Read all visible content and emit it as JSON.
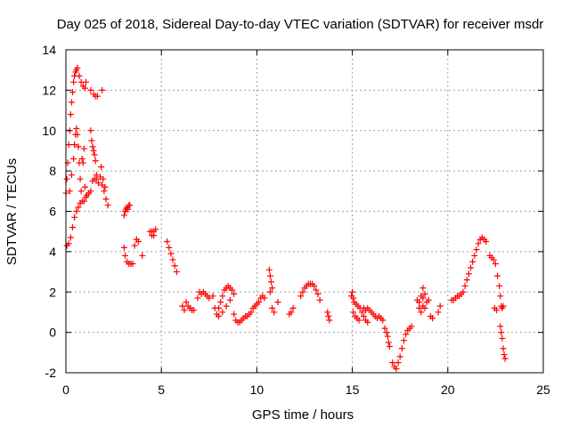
{
  "chart_data": {
    "type": "scatter",
    "title": "Day 025 of 2018, Sidereal Day-to-day VTEC variation (SDTVAR) for receiver msdr",
    "xlabel": "GPS time / hours",
    "ylabel": "SDTVAR / TECUs",
    "xlim": [
      0,
      25
    ],
    "ylim": [
      -2,
      14
    ],
    "xticks": [
      0,
      5,
      10,
      15,
      20,
      25
    ],
    "yticks": [
      -2,
      0,
      2,
      4,
      6,
      8,
      10,
      12,
      14
    ],
    "grid": true,
    "marker": "+",
    "color": "#ff0000",
    "series": [
      {
        "name": "SDTVAR",
        "points": [
          [
            0.0,
            6.9
          ],
          [
            0.05,
            7.6
          ],
          [
            0.1,
            8.4
          ],
          [
            0.15,
            9.3
          ],
          [
            0.2,
            10.0
          ],
          [
            0.25,
            10.8
          ],
          [
            0.3,
            11.4
          ],
          [
            0.35,
            11.9
          ],
          [
            0.4,
            12.4
          ],
          [
            0.45,
            12.7
          ],
          [
            0.5,
            12.9
          ],
          [
            0.55,
            13.0
          ],
          [
            0.6,
            13.1
          ],
          [
            0.05,
            4.3
          ],
          [
            0.15,
            4.4
          ],
          [
            0.25,
            4.7
          ],
          [
            0.35,
            5.2
          ],
          [
            0.45,
            5.7
          ],
          [
            0.55,
            6.0
          ],
          [
            0.65,
            6.2
          ],
          [
            0.75,
            6.4
          ],
          [
            0.85,
            6.5
          ],
          [
            0.95,
            6.5
          ],
          [
            1.05,
            6.7
          ],
          [
            0.2,
            7.0
          ],
          [
            0.3,
            7.8
          ],
          [
            0.4,
            8.6
          ],
          [
            0.45,
            9.3
          ],
          [
            0.5,
            9.8
          ],
          [
            0.55,
            10.1
          ],
          [
            0.6,
            9.8
          ],
          [
            0.65,
            9.2
          ],
          [
            0.7,
            8.4
          ],
          [
            0.75,
            7.6
          ],
          [
            0.8,
            7.0
          ],
          [
            0.7,
            12.7
          ],
          [
            0.8,
            12.4
          ],
          [
            0.9,
            12.2
          ],
          [
            1.0,
            12.1
          ],
          [
            1.05,
            12.4
          ],
          [
            1.3,
            12.0
          ],
          [
            1.45,
            11.8
          ],
          [
            1.55,
            11.7
          ],
          [
            1.65,
            11.7
          ],
          [
            1.9,
            12.0
          ],
          [
            0.85,
            8.6
          ],
          [
            0.9,
            8.4
          ],
          [
            0.95,
            9.1
          ],
          [
            1.0,
            7.2
          ],
          [
            1.1,
            6.8
          ],
          [
            1.2,
            6.9
          ],
          [
            1.3,
            7.0
          ],
          [
            1.4,
            7.5
          ],
          [
            1.5,
            7.6
          ],
          [
            1.6,
            7.6
          ],
          [
            1.7,
            7.4
          ],
          [
            1.8,
            7.7
          ],
          [
            1.9,
            7.3
          ],
          [
            2.0,
            7.0
          ],
          [
            2.1,
            6.6
          ],
          [
            2.2,
            6.3
          ],
          [
            1.3,
            10.0
          ],
          [
            1.35,
            9.5
          ],
          [
            1.4,
            9.2
          ],
          [
            1.45,
            9.0
          ],
          [
            1.5,
            8.8
          ],
          [
            1.55,
            8.5
          ],
          [
            1.6,
            7.8
          ],
          [
            1.85,
            8.2
          ],
          [
            1.95,
            7.6
          ],
          [
            2.05,
            7.2
          ],
          [
            3.05,
            5.8
          ],
          [
            3.1,
            6.0
          ],
          [
            3.15,
            6.1
          ],
          [
            3.2,
            6.2
          ],
          [
            3.25,
            6.1
          ],
          [
            3.3,
            6.3
          ],
          [
            3.35,
            6.3
          ],
          [
            3.05,
            4.2
          ],
          [
            3.1,
            3.8
          ],
          [
            3.2,
            3.5
          ],
          [
            3.3,
            3.4
          ],
          [
            3.4,
            3.4
          ],
          [
            3.5,
            3.4
          ],
          [
            3.6,
            4.3
          ],
          [
            3.7,
            4.6
          ],
          [
            3.8,
            4.5
          ],
          [
            4.0,
            3.8
          ],
          [
            4.4,
            5.0
          ],
          [
            4.5,
            5.0
          ],
          [
            4.6,
            5.0
          ],
          [
            4.7,
            5.1
          ],
          [
            4.5,
            4.8
          ],
          [
            4.6,
            4.8
          ],
          [
            5.3,
            4.5
          ],
          [
            5.4,
            4.2
          ],
          [
            5.5,
            3.9
          ],
          [
            5.6,
            3.6
          ],
          [
            5.7,
            3.3
          ],
          [
            5.8,
            3.0
          ],
          [
            6.1,
            1.3
          ],
          [
            6.2,
            1.1
          ],
          [
            6.3,
            1.5
          ],
          [
            6.4,
            1.3
          ],
          [
            6.5,
            1.2
          ],
          [
            6.6,
            1.1
          ],
          [
            6.7,
            1.1
          ],
          [
            6.9,
            1.7
          ],
          [
            7.0,
            2.0
          ],
          [
            7.1,
            1.9
          ],
          [
            7.2,
            2.0
          ],
          [
            7.3,
            1.9
          ],
          [
            7.4,
            1.8
          ],
          [
            7.5,
            1.7
          ],
          [
            7.7,
            1.8
          ],
          [
            7.8,
            1.2
          ],
          [
            7.9,
            0.9
          ],
          [
            8.0,
            1.2
          ],
          [
            8.1,
            1.5
          ],
          [
            8.2,
            1.8
          ],
          [
            8.3,
            2.1
          ],
          [
            8.4,
            2.2
          ],
          [
            8.5,
            2.3
          ],
          [
            8.6,
            2.2
          ],
          [
            8.7,
            2.1
          ],
          [
            8.8,
            1.9
          ],
          [
            8.0,
            0.8
          ],
          [
            8.2,
            1.0
          ],
          [
            8.4,
            1.3
          ],
          [
            8.6,
            1.6
          ],
          [
            8.8,
            0.9
          ],
          [
            8.9,
            0.6
          ],
          [
            9.0,
            0.5
          ],
          [
            9.1,
            0.5
          ],
          [
            9.2,
            0.6
          ],
          [
            9.3,
            0.7
          ],
          [
            9.4,
            0.8
          ],
          [
            9.5,
            0.8
          ],
          [
            9.6,
            0.9
          ],
          [
            9.7,
            1.0
          ],
          [
            9.8,
            1.2
          ],
          [
            9.9,
            1.3
          ],
          [
            10.0,
            1.4
          ],
          [
            10.1,
            1.5
          ],
          [
            10.2,
            1.7
          ],
          [
            10.3,
            1.8
          ],
          [
            10.4,
            1.7
          ],
          [
            10.65,
            3.1
          ],
          [
            10.7,
            2.8
          ],
          [
            10.75,
            2.5
          ],
          [
            10.8,
            2.2
          ],
          [
            10.7,
            2.0
          ],
          [
            10.8,
            1.2
          ],
          [
            10.9,
            1.0
          ],
          [
            11.1,
            1.5
          ],
          [
            11.7,
            0.9
          ],
          [
            11.8,
            1.0
          ],
          [
            11.9,
            1.2
          ],
          [
            12.3,
            1.8
          ],
          [
            12.4,
            2.0
          ],
          [
            12.5,
            2.2
          ],
          [
            12.6,
            2.3
          ],
          [
            12.7,
            2.4
          ],
          [
            12.8,
            2.4
          ],
          [
            12.9,
            2.4
          ],
          [
            13.0,
            2.3
          ],
          [
            13.1,
            2.1
          ],
          [
            13.2,
            1.9
          ],
          [
            13.3,
            1.6
          ],
          [
            13.7,
            1.0
          ],
          [
            13.75,
            0.8
          ],
          [
            13.8,
            0.6
          ],
          [
            14.95,
            1.8
          ],
          [
            15.0,
            2.0
          ],
          [
            15.05,
            1.7
          ],
          [
            15.1,
            1.5
          ],
          [
            15.2,
            1.4
          ],
          [
            15.3,
            1.3
          ],
          [
            15.4,
            1.2
          ],
          [
            15.5,
            1.0
          ],
          [
            15.6,
            0.8
          ],
          [
            15.7,
            0.6
          ],
          [
            15.8,
            0.5
          ],
          [
            15.05,
            1.0
          ],
          [
            15.15,
            0.8
          ],
          [
            15.25,
            0.7
          ],
          [
            15.35,
            0.6
          ],
          [
            15.6,
            1.2
          ],
          [
            15.7,
            1.1
          ],
          [
            15.8,
            1.2
          ],
          [
            15.9,
            1.1
          ],
          [
            16.0,
            1.0
          ],
          [
            16.1,
            0.9
          ],
          [
            16.2,
            0.8
          ],
          [
            16.3,
            0.7
          ],
          [
            16.4,
            0.8
          ],
          [
            16.5,
            0.7
          ],
          [
            16.6,
            0.6
          ],
          [
            16.7,
            0.2
          ],
          [
            16.8,
            0.0
          ],
          [
            16.85,
            -0.2
          ],
          [
            16.9,
            -0.5
          ],
          [
            16.95,
            -0.7
          ],
          [
            17.1,
            -1.5
          ],
          [
            17.2,
            -1.7
          ],
          [
            17.3,
            -1.8
          ],
          [
            17.4,
            -1.5
          ],
          [
            17.5,
            -1.2
          ],
          [
            17.6,
            -0.8
          ],
          [
            17.7,
            -0.4
          ],
          [
            17.8,
            -0.1
          ],
          [
            17.9,
            0.1
          ],
          [
            18.0,
            0.2
          ],
          [
            18.1,
            0.3
          ],
          [
            18.4,
            1.6
          ],
          [
            18.5,
            1.5
          ],
          [
            18.6,
            1.8
          ],
          [
            18.7,
            1.7
          ],
          [
            18.8,
            1.9
          ],
          [
            18.9,
            1.5
          ],
          [
            19.0,
            1.6
          ],
          [
            18.5,
            1.2
          ],
          [
            18.6,
            1.0
          ],
          [
            18.7,
            1.3
          ],
          [
            18.8,
            1.2
          ],
          [
            18.7,
            2.2
          ],
          [
            19.1,
            0.8
          ],
          [
            19.2,
            0.7
          ],
          [
            19.5,
            1.0
          ],
          [
            19.6,
            1.3
          ],
          [
            20.2,
            1.6
          ],
          [
            20.3,
            1.6
          ],
          [
            20.4,
            1.7
          ],
          [
            20.5,
            1.8
          ],
          [
            20.6,
            1.8
          ],
          [
            20.7,
            1.9
          ],
          [
            20.8,
            2.0
          ],
          [
            20.9,
            2.3
          ],
          [
            21.0,
            2.6
          ],
          [
            21.1,
            2.9
          ],
          [
            21.2,
            3.2
          ],
          [
            21.3,
            3.5
          ],
          [
            21.4,
            3.8
          ],
          [
            21.5,
            4.1
          ],
          [
            21.6,
            4.4
          ],
          [
            21.7,
            4.6
          ],
          [
            21.8,
            4.7
          ],
          [
            21.9,
            4.6
          ],
          [
            22.0,
            4.5
          ],
          [
            22.2,
            3.8
          ],
          [
            22.3,
            3.7
          ],
          [
            22.4,
            3.6
          ],
          [
            22.5,
            3.4
          ],
          [
            22.6,
            2.8
          ],
          [
            22.45,
            1.2
          ],
          [
            22.55,
            1.1
          ],
          [
            22.7,
            2.3
          ],
          [
            22.75,
            1.8
          ],
          [
            22.8,
            1.3
          ],
          [
            22.85,
            1.2
          ],
          [
            22.9,
            1.3
          ],
          [
            22.75,
            0.3
          ],
          [
            22.8,
            0.0
          ],
          [
            22.85,
            -0.3
          ],
          [
            22.9,
            -0.8
          ],
          [
            22.95,
            -1.1
          ],
          [
            23.0,
            -1.3
          ]
        ]
      }
    ]
  }
}
